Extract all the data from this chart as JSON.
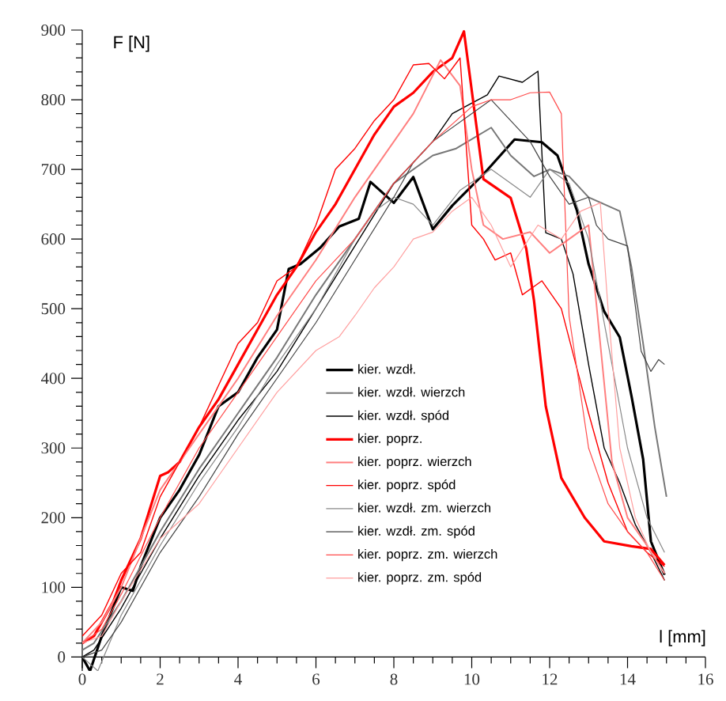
{
  "chart_data": {
    "type": "line",
    "xlabel": "l [mm]",
    "ylabel": "F [N]",
    "xlim": [
      0,
      16
    ],
    "ylim": [
      -20,
      900
    ],
    "xticks": [
      0,
      2,
      4,
      6,
      8,
      10,
      12,
      14,
      16
    ],
    "yticks": [
      0,
      100,
      200,
      300,
      400,
      500,
      600,
      700,
      800,
      900
    ],
    "legend": "bottom right",
    "series": [
      {
        "name": "kier. wzdł.",
        "color": "#000000",
        "x": [
          0,
          0.2,
          0.5,
          1,
          1.3,
          1.5,
          2,
          2.5,
          3,
          3.5,
          4,
          4.5,
          5,
          5.3,
          5.6,
          6.1,
          6.6,
          7.1,
          7.4,
          8,
          8.5,
          9,
          9.5,
          10.3,
          11.1,
          11.8,
          12.2,
          12.7,
          13,
          13.4,
          13.8,
          14.1,
          14.4,
          14.6,
          14.95
        ],
        "values": [
          0,
          -20,
          30,
          100,
          95,
          130,
          200,
          240,
          290,
          360,
          380,
          430,
          470,
          557,
          564,
          587,
          618,
          629,
          682,
          652,
          689,
          614,
          648,
          693,
          743,
          739,
          720,
          641,
          564,
          496,
          459,
          375,
          284,
          166,
          118
        ]
      },
      {
        "name": "kier. wzdł. wierzch",
        "color": "#777777",
        "x": [
          0,
          0.3,
          1,
          2,
          3,
          4,
          5,
          6,
          7,
          8,
          9,
          9.6,
          10.5,
          11,
          11.6,
          12,
          12.5,
          13,
          13.4,
          13.8,
          14.1,
          14.4,
          14.7,
          15
        ],
        "values": [
          10,
          20,
          80,
          180,
          270,
          350,
          430,
          520,
          600,
          680,
          720,
          730,
          760,
          720,
          690,
          700,
          690,
          660,
          650,
          640,
          560,
          450,
          330,
          230
        ]
      },
      {
        "name": "kier. wzdł. spód",
        "color": "#000000",
        "x": [
          0,
          0.3,
          1,
          2,
          3,
          4,
          5,
          6,
          7,
          8,
          9,
          9.5,
          10,
          10.4,
          10.7,
          11.3,
          11.7,
          11.9,
          12.3,
          12.6,
          13,
          13.4,
          13.8,
          14.2,
          14.6,
          14.95
        ],
        "values": [
          0,
          10,
          70,
          170,
          260,
          340,
          410,
          500,
          590,
          680,
          740,
          780,
          795,
          807,
          834,
          825,
          841,
          609,
          600,
          550,
          420,
          300,
          250,
          190,
          150,
          110
        ]
      },
      {
        "name": "kier. poprz.",
        "color": "#ff0000",
        "x": [
          0,
          0.3,
          0.8,
          1,
          1.5,
          2,
          2.2,
          2.5,
          3,
          3.5,
          4,
          4.5,
          5,
          5.5,
          6,
          6.5,
          7,
          7.5,
          8,
          8.5,
          9,
          9.5,
          9.8,
          10.3,
          11,
          11.4,
          11.6,
          11.9,
          12.3,
          12.9,
          13.4,
          14.1,
          14.6,
          14.95
        ],
        "values": [
          20,
          30,
          80,
          110,
          170,
          260,
          265,
          280,
          330,
          370,
          420,
          470,
          520,
          560,
          610,
          650,
          700,
          750,
          790,
          810,
          840,
          860,
          898,
          686,
          659,
          586,
          511,
          360,
          257,
          200,
          166,
          159,
          155,
          132
        ]
      },
      {
        "name": "kier. poprz. wierzch",
        "color": "#ff7f7f",
        "x": [
          0,
          0.5,
          1,
          2,
          3,
          4,
          5,
          6,
          7,
          8,
          8.5,
          9.2,
          9.7,
          10,
          10.3,
          10.8,
          11.5,
          12,
          12.5,
          13,
          13.3,
          13.6,
          14,
          14.5,
          14.95
        ],
        "values": [
          20,
          50,
          100,
          240,
          320,
          400,
          490,
          570,
          660,
          740,
          780,
          857,
          820,
          700,
          620,
          600,
          610,
          580,
          600,
          620,
          450,
          280,
          200,
          160,
          120
        ]
      },
      {
        "name": "kier. poprz. spód",
        "color": "#ff0000",
        "x": [
          0,
          0.5,
          1,
          1.5,
          2,
          3,
          3.5,
          4,
          4.5,
          5,
          5.5,
          6,
          6.5,
          7,
          7.5,
          8,
          8.5,
          8.9,
          9.3,
          9.7,
          10,
          10.3,
          10.6,
          11,
          11.3,
          11.8,
          12.3,
          13,
          13.5,
          14,
          14.5,
          14.95
        ],
        "values": [
          30,
          60,
          120,
          150,
          230,
          330,
          390,
          450,
          480,
          540,
          560,
          620,
          700,
          730,
          770,
          800,
          850,
          852,
          830,
          860,
          620,
          600,
          570,
          580,
          520,
          540,
          500,
          350,
          250,
          180,
          150,
          130
        ]
      },
      {
        "name": "kier. wzdł. zm. wierzch",
        "color": "#888888",
        "x": [
          0,
          0.4,
          1,
          2,
          3,
          4,
          5,
          6,
          7,
          7.5,
          8,
          8.5,
          9,
          9.7,
          10.5,
          11,
          11.5,
          12,
          12.5,
          13,
          13.5,
          14,
          14.5,
          14.95
        ],
        "values": [
          0,
          -20,
          60,
          160,
          250,
          330,
          420,
          500,
          600,
          640,
          660,
          650,
          620,
          670,
          700,
          680,
          660,
          700,
          680,
          600,
          450,
          300,
          200,
          150
        ]
      },
      {
        "name": "kier. wzdł. zm. spód",
        "color": "#444444",
        "x": [
          0,
          0.5,
          1,
          2,
          3,
          4,
          5,
          6,
          7,
          8,
          8.5,
          9,
          9.5,
          10,
          10.5,
          11,
          11.5,
          12,
          12.5,
          13,
          13.2,
          13.5,
          14,
          14.35,
          14.6,
          14.8,
          14.95
        ],
        "values": [
          0,
          10,
          50,
          150,
          230,
          320,
          400,
          480,
          570,
          660,
          710,
          740,
          760,
          780,
          800,
          770,
          740,
          690,
          650,
          660,
          620,
          600,
          590,
          439,
          410,
          427,
          420
        ]
      },
      {
        "name": "kier. poprz. zm. wierzch",
        "color": "#ff4c4c",
        "x": [
          0,
          0.5,
          1,
          2,
          3,
          4,
          5,
          6,
          7,
          8,
          9,
          10,
          10.5,
          11,
          11.5,
          12,
          12.3,
          12.5,
          13,
          13.5,
          14,
          14.5,
          14.95
        ],
        "values": [
          20,
          40,
          90,
          200,
          300,
          380,
          460,
          540,
          600,
          680,
          740,
          790,
          800,
          800,
          810,
          811,
          780,
          489,
          300,
          220,
          180,
          150,
          110
        ]
      },
      {
        "name": "kier. poprz. zm. spód",
        "color": "#ff9f9f",
        "x": [
          0,
          0.5,
          1,
          2,
          3,
          4,
          5,
          6,
          6.6,
          7,
          7.5,
          8,
          8.5,
          9,
          9.5,
          10,
          10.5,
          11,
          11.7,
          12.3,
          12.8,
          13.3,
          13.5,
          13.8,
          14.2,
          14.6,
          14.95
        ],
        "values": [
          20,
          30,
          80,
          170,
          220,
          300,
          380,
          440,
          460,
          490,
          530,
          560,
          600,
          610,
          640,
          660,
          620,
          560,
          620,
          600,
          640,
          652,
          500,
          300,
          200,
          150,
          120
        ]
      }
    ]
  }
}
